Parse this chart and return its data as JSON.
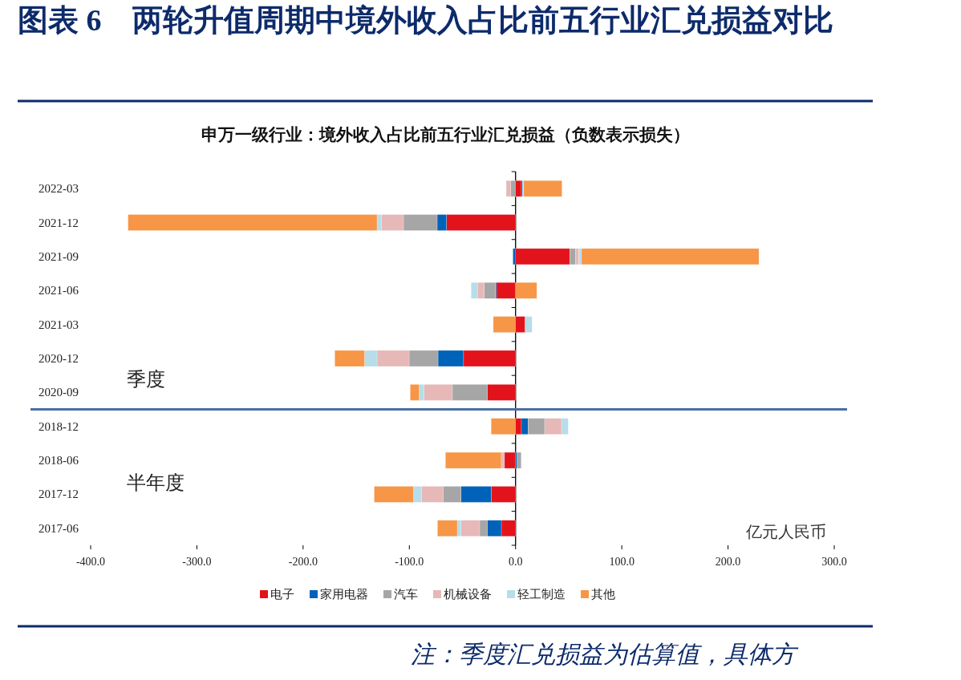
{
  "chart_data": {
    "type": "bar",
    "orientation": "horizontal",
    "stacked": true,
    "title": "图表 6　两轮升值周期中境外收入占比前五行业汇兑损益对比",
    "subtitle": "申万一级行业：境外收入占比前五行业汇兑损益（负数表示损失）",
    "categories": [
      "2022-03",
      "2021-12",
      "2021-09",
      "2021-06",
      "2021-03",
      "2020-12",
      "2020-09",
      "2018-12",
      "2018-06",
      "2017-12",
      "2017-06"
    ],
    "series": [
      {
        "name": "电子",
        "color": "#e3131c",
        "values": [
          5.5,
          -65,
          51,
          -18,
          9,
          -49,
          -26.7,
          5.5,
          -10.5,
          -22.9,
          -13.4
        ]
      },
      {
        "name": "家用电器",
        "color": "#0062b8",
        "values": [
          1.2,
          -8.8,
          -2.5,
          -1,
          0,
          -24,
          0,
          6.3,
          1.5,
          -28.5,
          -13.3
        ]
      },
      {
        "name": "汽车",
        "color": "#a6a6a6",
        "values": [
          -4.5,
          -31.7,
          5.3,
          -10.6,
          0,
          -27.2,
          -32.8,
          15.6,
          3.8,
          -16.9,
          -7.1
        ]
      },
      {
        "name": "机械设备",
        "color": "#e6b8b7",
        "values": [
          -4.3,
          -20.6,
          3.3,
          -6.3,
          0,
          -30.2,
          -26.7,
          15.9,
          -3,
          -20.2,
          -17.6
        ]
      },
      {
        "name": "轻工制造",
        "color": "#b7dde8",
        "values": [
          1,
          -4.3,
          2.5,
          -6,
          6.5,
          -11.8,
          -4.5,
          6.3,
          0,
          -7.6,
          -3.5
        ]
      },
      {
        "name": "其他",
        "color": "#f79646",
        "values": [
          36,
          -234.4,
          167,
          20,
          -21,
          -28,
          -8.5,
          -23,
          -52.5,
          -37,
          -18.6
        ]
      }
    ],
    "xlim": [
      -400,
      300
    ],
    "xticks": [
      {
        "value": -400,
        "label": "-400.0"
      },
      {
        "value": -300,
        "label": "-300.0"
      },
      {
        "value": -200,
        "label": "-200.0"
      },
      {
        "value": -100,
        "label": "-100.0"
      },
      {
        "value": 0,
        "label": "0.0"
      },
      {
        "value": 100,
        "label": "100.0"
      },
      {
        "value": 200,
        "label": "200.0"
      },
      {
        "value": 300,
        "label": "300.0"
      }
    ],
    "ref_lines": [
      {
        "axis": "y",
        "value": "2018-12",
        "color": "#4a6fa5"
      }
    ],
    "annotations": [
      "季度",
      "半年度",
      "亿元人民币",
      "注：季度汇兑损益为估算值，具体方"
    ],
    "legend": "bottom"
  }
}
